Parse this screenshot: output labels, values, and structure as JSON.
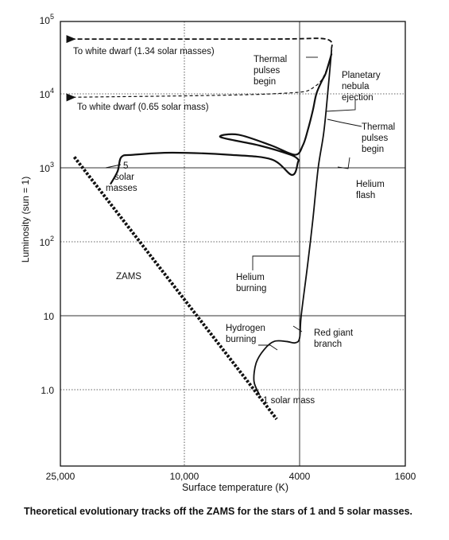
{
  "caption": "Theoretical evolutionary tracks off the ZAMS for the stars of 1 and 5 solar masses.",
  "chart_data": {
    "type": "line",
    "title": "",
    "xlabel": "Surface temperature (K)",
    "ylabel": "Luminosity (sun = 1)",
    "x_scale": "log",
    "x_reversed": true,
    "y_scale": "log",
    "xlim": [
      25000,
      1600
    ],
    "ylim": [
      0.3,
      100000
    ],
    "grid": true,
    "x_ticks": [
      {
        "value": 25000,
        "label": "25,000"
      },
      {
        "value": 10000,
        "label": "10,000"
      },
      {
        "value": 4000,
        "label": "4000"
      },
      {
        "value": 1600,
        "label": "1600"
      }
    ],
    "y_ticks": [
      {
        "value": 1,
        "label": "1.0"
      },
      {
        "value": 10,
        "label": "10"
      },
      {
        "value": 100,
        "label": "10",
        "exp": "2"
      },
      {
        "value": 1000,
        "label": "10",
        "exp": "3"
      },
      {
        "value": 10000,
        "label": "10",
        "exp": "4"
      },
      {
        "value": 100000,
        "label": "10",
        "exp": "5"
      }
    ],
    "zams": {
      "label": "ZAMS",
      "points": [
        [
          24000,
          1400
        ],
        [
          5500,
          0.8
        ],
        [
          4800,
          0.4
        ]
      ]
    },
    "track_1_solar_mass": {
      "label": "1 solar mass",
      "points": [
        [
          5500,
          0.85
        ],
        [
          5750,
          1.3
        ],
        [
          5650,
          2.3
        ],
        [
          5300,
          3.5
        ],
        [
          4900,
          4.5
        ],
        [
          4450,
          4.5
        ],
        [
          4150,
          4.3
        ],
        [
          4000,
          5
        ],
        [
          3950,
          10
        ],
        [
          3750,
          50
        ],
        [
          3600,
          200
        ],
        [
          3450,
          1000
        ],
        [
          3300,
          3000
        ],
        [
          3200,
          10000
        ],
        [
          3100,
          40000
        ]
      ],
      "to_white_dwarf": [
        [
          3100,
          40000
        ],
        [
          3250,
          55000
        ],
        [
          5000,
          55000
        ],
        [
          24000,
          55000
        ]
      ]
    },
    "track_5_solar_masses": {
      "label": "5 solar masses",
      "points": [
        [
          18000,
          600
        ],
        [
          17000,
          900
        ],
        [
          16500,
          1400
        ],
        [
          15000,
          1500
        ],
        [
          11000,
          1600
        ],
        [
          7000,
          1500
        ],
        [
          5000,
          1300
        ],
        [
          4250,
          800
        ],
        [
          4050,
          1200
        ],
        [
          4050,
          1300
        ],
        [
          4300,
          1500
        ],
        [
          5500,
          2000
        ],
        [
          7500,
          2600
        ],
        [
          6500,
          2800
        ],
        [
          5000,
          2000
        ],
        [
          4150,
          1500
        ],
        [
          3900,
          2000
        ],
        [
          3750,
          3200
        ],
        [
          3600,
          6000
        ],
        [
          3500,
          10000
        ],
        [
          3350,
          15000
        ],
        [
          3250,
          19000
        ],
        [
          3100,
          35000
        ]
      ],
      "to_white_dwarf": [
        [
          3100,
          35000
        ],
        [
          3500,
          13000
        ],
        [
          5000,
          10000
        ],
        [
          24000,
          9000
        ]
      ]
    },
    "annotations": [
      {
        "text": "To white dwarf (1.34 solar masses)"
      },
      {
        "text": "To white dwarf (0.65 solar mass)"
      },
      {
        "text": "Thermal pulses begin"
      },
      {
        "text": "Planetary nebula ejection"
      },
      {
        "text": "Thermal pulses begin"
      },
      {
        "text": "Helium flash"
      },
      {
        "text": "Helium burning"
      },
      {
        "text": "Hydrogen burning"
      },
      {
        "text": "Red giant branch"
      },
      {
        "text": "ZAMS"
      },
      {
        "text": "5 solar masses"
      },
      {
        "text": "1 solar mass"
      }
    ]
  }
}
